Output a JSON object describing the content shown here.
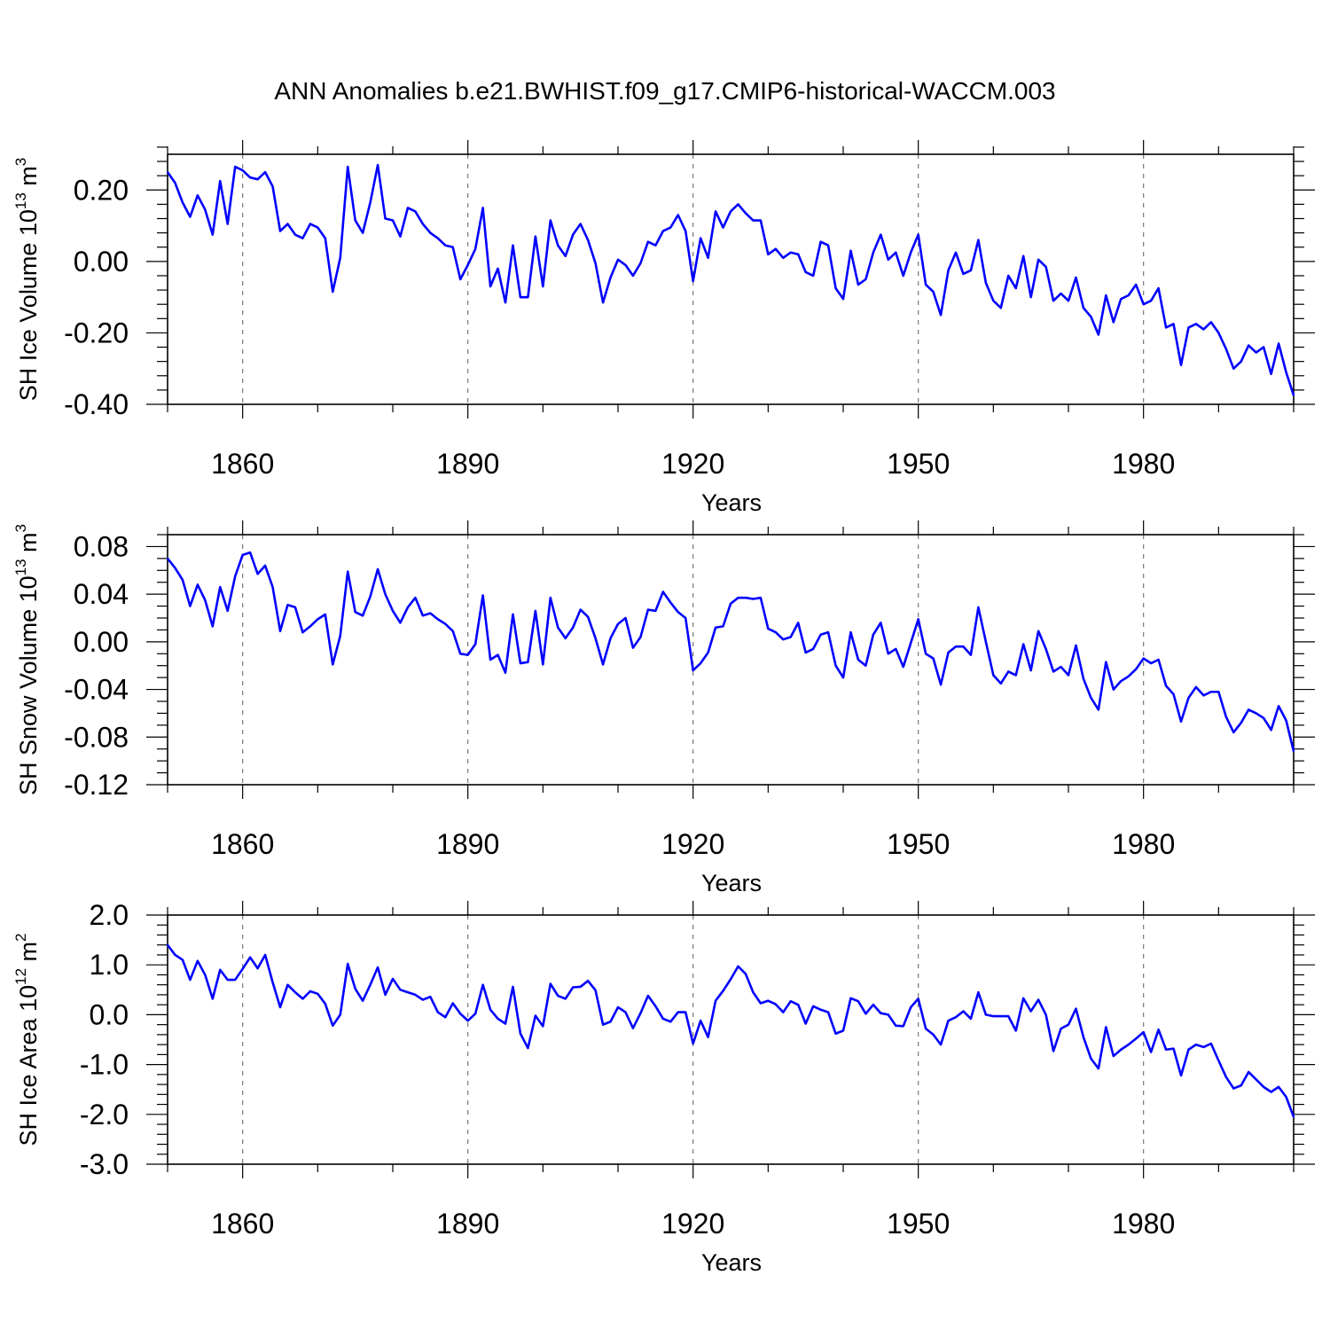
{
  "figure": {
    "title": "ANN Anomalies b.e21.BWHIST.f09_g17.CMIP6-historical-WACCM.003"
  },
  "chart_data": [
    {
      "type": "line",
      "title": "",
      "xlabel": "Years",
      "ylabel": "SH Ice Volume 10¹³ m³",
      "ylabel_parts": [
        "SH Ice Volume 10",
        "13",
        " m",
        "3"
      ],
      "xlim": [
        1850,
        2000
      ],
      "ylim": [
        -0.4,
        0.3
      ],
      "xticks": [
        1860,
        1890,
        1920,
        1950,
        1980
      ],
      "xtick_labels": [
        "1860",
        "1890",
        "1920",
        "1950",
        "1980"
      ],
      "yticks": [
        -0.4,
        -0.2,
        0.0,
        0.2
      ],
      "ytick_labels": [
        "-0.40",
        "-0.20",
        "0.00",
        "0.20"
      ],
      "y_minor_step": 0.04,
      "x_minor_step": 10,
      "grid": "dashed vertical at major x ticks",
      "series": [
        {
          "name": "SH Ice Volume",
          "color": "#0000ff",
          "x_start": 1850,
          "x_step": 1,
          "values": [
            0.25,
            0.22,
            0.165,
            0.125,
            0.185,
            0.145,
            0.075,
            0.225,
            0.105,
            0.265,
            0.255,
            0.235,
            0.23,
            0.25,
            0.21,
            0.085,
            0.105,
            0.075,
            0.065,
            0.105,
            0.095,
            0.065,
            -0.085,
            0.01,
            0.265,
            0.115,
            0.08,
            0.165,
            0.27,
            0.12,
            0.115,
            0.07,
            0.15,
            0.14,
            0.105,
            0.08,
            0.065,
            0.045,
            0.04,
            -0.05,
            -0.01,
            0.035,
            0.15,
            -0.07,
            -0.02,
            -0.115,
            0.045,
            -0.1,
            -0.1,
            0.07,
            -0.07,
            0.115,
            0.045,
            0.015,
            0.075,
            0.105,
            0.06,
            -0.005,
            -0.115,
            -0.045,
            0.005,
            -0.01,
            -0.04,
            -0.005,
            0.055,
            0.045,
            0.085,
            0.095,
            0.13,
            0.085,
            -0.055,
            0.065,
            0.01,
            0.14,
            0.095,
            0.14,
            0.16,
            0.135,
            0.115,
            0.115,
            0.02,
            0.035,
            0.01,
            0.025,
            0.02,
            -0.03,
            -0.04,
            0.055,
            0.045,
            -0.075,
            -0.105,
            0.03,
            -0.065,
            -0.05,
            0.025,
            0.075,
            0.005,
            0.025,
            -0.04,
            0.025,
            0.075,
            -0.065,
            -0.085,
            -0.15,
            -0.025,
            0.025,
            -0.035,
            -0.025,
            0.06,
            -0.06,
            -0.11,
            -0.13,
            -0.04,
            -0.075,
            0.015,
            -0.1,
            0.005,
            -0.015,
            -0.11,
            -0.09,
            -0.11,
            -0.045,
            -0.13,
            -0.155,
            -0.205,
            -0.095,
            -0.17,
            -0.105,
            -0.095,
            -0.065,
            -0.12,
            -0.11,
            -0.075,
            -0.185,
            -0.175,
            -0.29,
            -0.185,
            -0.175,
            -0.19,
            -0.17,
            -0.2,
            -0.245,
            -0.3,
            -0.28,
            -0.235,
            -0.255,
            -0.24,
            -0.315,
            -0.23,
            -0.31,
            -0.375
          ]
        }
      ]
    },
    {
      "type": "line",
      "title": "",
      "xlabel": "Years",
      "ylabel": "SH Snow Volume 10¹³ m³",
      "ylabel_parts": [
        "SH Snow Volume 10",
        "13",
        " m",
        "3"
      ],
      "xlim": [
        1850,
        2000
      ],
      "ylim": [
        -0.12,
        0.09
      ],
      "xticks": [
        1860,
        1890,
        1920,
        1950,
        1980
      ],
      "xtick_labels": [
        "1860",
        "1890",
        "1920",
        "1950",
        "1980"
      ],
      "yticks": [
        -0.12,
        -0.08,
        -0.04,
        0.0,
        0.04,
        0.08
      ],
      "ytick_labels": [
        "-0.12",
        "-0.08",
        "-0.04",
        "0.00",
        "0.04",
        "0.08"
      ],
      "y_minor_step": 0.01,
      "x_minor_step": 10,
      "grid": "dashed vertical at major x ticks",
      "series": [
        {
          "name": "SH Snow Volume",
          "color": "#0000ff",
          "x_start": 1850,
          "x_step": 1,
          "values": [
            0.07,
            0.062,
            0.052,
            0.03,
            0.048,
            0.035,
            0.013,
            0.046,
            0.026,
            0.055,
            0.073,
            0.075,
            0.057,
            0.064,
            0.046,
            0.009,
            0.031,
            0.029,
            0.008,
            0.013,
            0.019,
            0.023,
            -0.019,
            0.005,
            0.059,
            0.025,
            0.022,
            0.038,
            0.061,
            0.04,
            0.026,
            0.016,
            0.029,
            0.037,
            0.022,
            0.024,
            0.019,
            0.015,
            0.009,
            -0.01,
            -0.011,
            -0.002,
            0.039,
            -0.015,
            -0.011,
            -0.026,
            0.023,
            -0.018,
            -0.017,
            0.026,
            -0.019,
            0.037,
            0.012,
            0.003,
            0.012,
            0.027,
            0.021,
            0.003,
            -0.019,
            0.003,
            0.015,
            0.02,
            -0.005,
            0.004,
            0.027,
            0.026,
            0.042,
            0.033,
            0.025,
            0.02,
            -0.024,
            -0.018,
            -0.009,
            0.012,
            0.013,
            0.032,
            0.037,
            0.037,
            0.036,
            0.037,
            0.011,
            0.008,
            0.002,
            0.004,
            0.016,
            -0.009,
            -0.006,
            0.006,
            0.008,
            -0.02,
            -0.03,
            0.008,
            -0.015,
            -0.02,
            0.006,
            0.016,
            -0.01,
            -0.006,
            -0.021,
            -0.001,
            0.019,
            -0.01,
            -0.014,
            -0.036,
            -0.009,
            -0.004,
            -0.004,
            -0.011,
            0.029,
            0.0,
            -0.028,
            -0.035,
            -0.025,
            -0.028,
            -0.002,
            -0.024,
            0.009,
            -0.006,
            -0.025,
            -0.021,
            -0.028,
            -0.003,
            -0.031,
            -0.047,
            -0.057,
            -0.017,
            -0.04,
            -0.033,
            -0.029,
            -0.023,
            -0.014,
            -0.018,
            -0.015,
            -0.037,
            -0.044,
            -0.067,
            -0.047,
            -0.038,
            -0.045,
            -0.042,
            -0.042,
            -0.063,
            -0.076,
            -0.068,
            -0.057,
            -0.06,
            -0.064,
            -0.074,
            -0.054,
            -0.066,
            -0.092
          ]
        }
      ]
    },
    {
      "type": "line",
      "title": "",
      "xlabel": "Years",
      "ylabel": "SH Ice Area 10¹² m²",
      "ylabel_parts": [
        "SH Ice Area 10",
        "12",
        " m",
        "2"
      ],
      "xlim": [
        1850,
        2000
      ],
      "ylim": [
        -3.0,
        2.0
      ],
      "xticks": [
        1860,
        1890,
        1920,
        1950,
        1980
      ],
      "xtick_labels": [
        "1860",
        "1890",
        "1920",
        "1950",
        "1980"
      ],
      "yticks": [
        -3.0,
        -2.0,
        -1.0,
        0.0,
        1.0,
        2.0
      ],
      "ytick_labels": [
        "-3.0",
        "-2.0",
        "-1.0",
        "0.0",
        "1.0",
        "2.0"
      ],
      "y_minor_step": 0.2,
      "x_minor_step": 10,
      "grid": "dashed vertical at major x ticks",
      "series": [
        {
          "name": "SH Ice Area",
          "color": "#0000ff",
          "x_start": 1850,
          "x_step": 1,
          "values": [
            1.4,
            1.2,
            1.1,
            0.7,
            1.08,
            0.8,
            0.32,
            0.9,
            0.7,
            0.7,
            0.92,
            1.15,
            0.93,
            1.2,
            0.65,
            0.15,
            0.6,
            0.45,
            0.32,
            0.47,
            0.42,
            0.22,
            -0.22,
            0.0,
            1.02,
            0.52,
            0.28,
            0.6,
            0.95,
            0.4,
            0.72,
            0.5,
            0.45,
            0.4,
            0.3,
            0.36,
            0.05,
            -0.05,
            0.23,
            0.02,
            -0.12,
            0.02,
            0.6,
            0.1,
            -0.08,
            -0.18,
            0.56,
            -0.38,
            -0.67,
            -0.02,
            -0.23,
            0.62,
            0.38,
            0.32,
            0.55,
            0.56,
            0.68,
            0.49,
            -0.2,
            -0.14,
            0.15,
            0.05,
            -0.27,
            0.03,
            0.38,
            0.17,
            -0.08,
            -0.14,
            0.05,
            0.05,
            -0.58,
            -0.12,
            -0.45,
            0.28,
            0.48,
            0.71,
            0.97,
            0.82,
            0.45,
            0.23,
            0.28,
            0.21,
            0.05,
            0.27,
            0.2,
            -0.18,
            0.17,
            0.1,
            0.05,
            -0.38,
            -0.32,
            0.33,
            0.27,
            0.02,
            0.2,
            0.03,
            0.0,
            -0.22,
            -0.23,
            0.15,
            0.32,
            -0.28,
            -0.4,
            -0.6,
            -0.12,
            -0.05,
            0.07,
            -0.08,
            0.45,
            0.0,
            -0.03,
            -0.03,
            -0.03,
            -0.32,
            0.33,
            0.07,
            0.3,
            0.0,
            -0.73,
            -0.28,
            -0.2,
            0.12,
            -0.45,
            -0.88,
            -1.08,
            -0.25,
            -0.83,
            -0.7,
            -0.6,
            -0.48,
            -0.35,
            -0.75,
            -0.3,
            -0.7,
            -0.68,
            -1.22,
            -0.7,
            -0.6,
            -0.65,
            -0.58,
            -0.92,
            -1.25,
            -1.48,
            -1.42,
            -1.15,
            -1.3,
            -1.45,
            -1.55,
            -1.45,
            -1.65,
            -2.05
          ]
        }
      ]
    }
  ]
}
